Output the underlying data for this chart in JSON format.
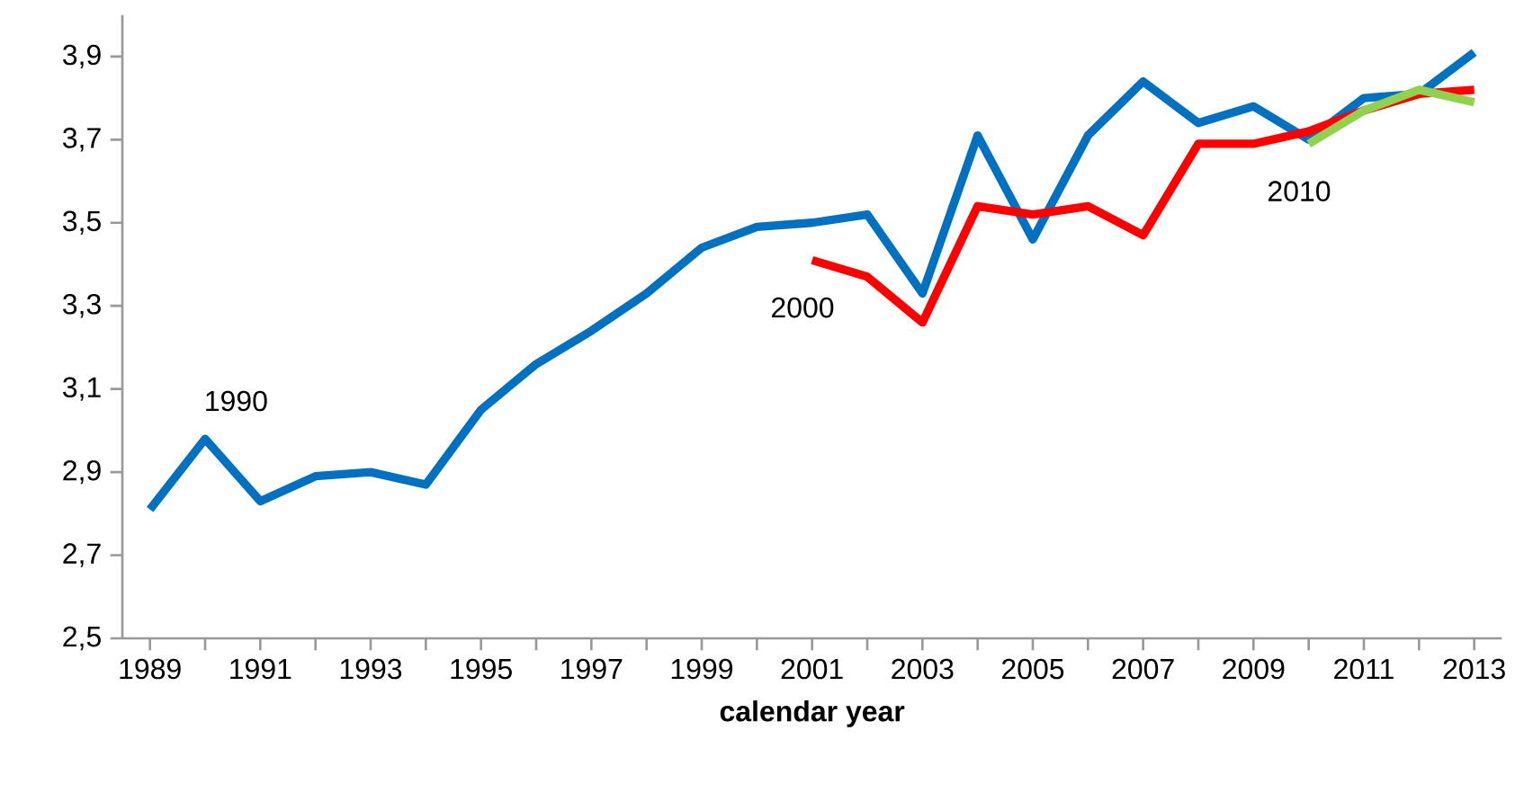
{
  "chart_data": {
    "type": "line",
    "xlabel": "**calendar year**",
    "xlim": [
      1988.5,
      2013.5
    ],
    "ylim": [
      2.5,
      4.0
    ],
    "xticks": [
      1989,
      {
        "value": 1990,
        "label": null
      },
      1991,
      {
        "value": 1992,
        "label": null
      },
      1993,
      {
        "value": 1994,
        "label": null
      },
      1995,
      {
        "value": 1996,
        "label": null
      },
      1997,
      {
        "value": 1998,
        "label": null
      },
      1999,
      {
        "value": 2000,
        "label": null
      },
      2001,
      {
        "value": 2002,
        "label": null
      },
      2003,
      {
        "value": 2004,
        "label": null
      },
      2005,
      {
        "value": 2006,
        "label": null
      },
      2007,
      {
        "value": 2008,
        "label": null
      },
      2009,
      {
        "value": 2010,
        "label": null
      },
      2011,
      {
        "value": 2012,
        "label": null
      },
      2013
    ],
    "yticks": [
      {
        "value": 2.5,
        "label": "2,5"
      },
      {
        "value": 2.7,
        "label": "2,7"
      },
      {
        "value": 2.9,
        "label": "2,9"
      },
      {
        "value": 3.1,
        "label": "3,1"
      },
      {
        "value": 3.3,
        "label": "3,3"
      },
      {
        "value": 3.5,
        "label": "3,5"
      },
      {
        "value": 3.7,
        "label": "3,7"
      },
      {
        "value": 3.9,
        "label": "3,9"
      }
    ],
    "grid": false,
    "marker": "none",
    "line_style": "solid",
    "series": [
      {
        "name": "1990",
        "color": "#0070c0",
        "x": [
          1989,
          1990,
          1991,
          1992,
          1993,
          1994,
          1995,
          1996,
          1997,
          1998,
          1999,
          2000,
          2001,
          2002,
          2003,
          2004,
          2005,
          2006,
          2007,
          2008,
          2009,
          2010,
          2011,
          2012,
          2013
        ],
        "values": [
          2.81,
          2.98,
          2.83,
          2.89,
          2.9,
          2.87,
          3.05,
          3.16,
          3.24,
          3.33,
          3.44,
          3.49,
          3.5,
          3.52,
          3.33,
          3.71,
          3.46,
          3.71,
          3.84,
          3.74,
          3.78,
          3.7,
          3.8,
          3.81,
          3.91
        ]
      },
      {
        "name": "2000",
        "color": "#ff0000",
        "x": [
          2001,
          2002,
          2003,
          2004,
          2005,
          2006,
          2007,
          2008,
          2009,
          2010,
          2011,
          2012,
          2013
        ],
        "values": [
          3.41,
          3.37,
          3.26,
          3.54,
          3.52,
          3.54,
          3.47,
          3.69,
          3.69,
          3.72,
          3.77,
          3.81,
          3.82
        ]
      },
      {
        "name": "2010",
        "color": "#92d050",
        "x": [
          2010,
          2011,
          2012,
          2013
        ],
        "values": [
          3.69,
          3.77,
          3.82,
          3.79
        ]
      }
    ]
  }
}
